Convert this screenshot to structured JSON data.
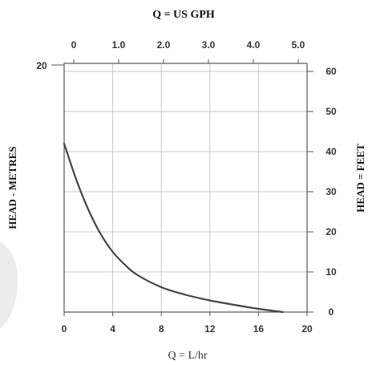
{
  "chart_data": {
    "type": "line",
    "title": "Q = US GPH",
    "xlabel": "Q = L/hr",
    "ylabel_left": "HEAD - METRES",
    "ylabel_right": "HEAD = FEET",
    "x_bottom_ticks": [
      "0",
      "4",
      "8",
      "12",
      "16",
      "20"
    ],
    "x_top_ticks": [
      "0",
      "1.0",
      "2.0",
      "3.0",
      "4.0",
      "5.0"
    ],
    "y_left_ticks": [
      "20"
    ],
    "y_right_ticks": [
      "60",
      "50",
      "40",
      "30",
      "20",
      "10",
      "0"
    ],
    "xlim": [
      0,
      20
    ],
    "ylim_feet": [
      0,
      62
    ],
    "grid": true,
    "colors": {
      "curve": "#444444",
      "grid": "#c8c8c8",
      "axis": "#555555",
      "shade": "#e9e9e9"
    },
    "series": [
      {
        "x": [
          0,
          1,
          2,
          3,
          4,
          5,
          6,
          8,
          10,
          12,
          14,
          16,
          18
        ],
        "values": [
          42,
          33,
          25.5,
          19.5,
          15,
          11.8,
          9.3,
          6.2,
          4.3,
          2.9,
          1.8,
          0.8,
          0
        ]
      }
    ]
  }
}
